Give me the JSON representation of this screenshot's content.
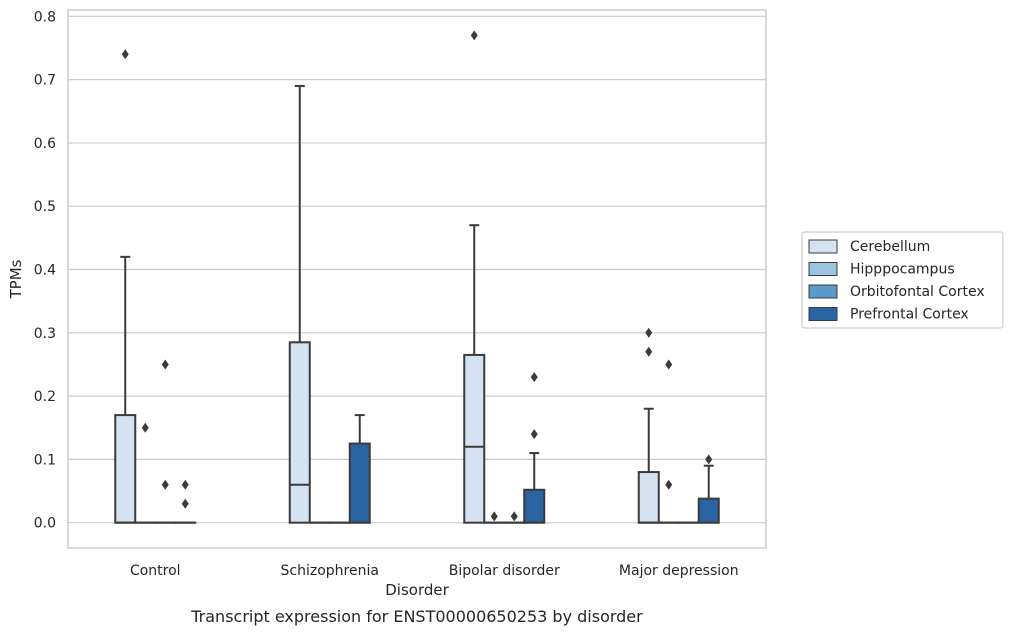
{
  "caption": "Transcript expression for ENST00000650253 by disorder",
  "chart_data": {
    "type": "box",
    "title": "",
    "xlabel": "Disorder",
    "ylabel": "TPMs",
    "ylim": [
      -0.04,
      0.81
    ],
    "yticks": [
      0.0,
      0.1,
      0.2,
      0.3,
      0.4,
      0.5,
      0.6,
      0.7,
      0.8
    ],
    "ytick_labels": [
      "0.0",
      "0.1",
      "0.2",
      "0.3",
      "0.4",
      "0.5",
      "0.6",
      "0.7",
      "0.8"
    ],
    "grid": true,
    "legend_position": "right",
    "categories": [
      "Control",
      "Schizophrenia",
      "Bipolar disorder",
      "Major depression"
    ],
    "series": [
      {
        "name": "Cerebellum",
        "color": "#d4e2f1",
        "boxes": [
          {
            "q1": 0.0,
            "median": 0.0,
            "q3": 0.17,
            "whislo": 0.0,
            "whishi": 0.42,
            "fliers": [
              0.74
            ]
          },
          {
            "q1": 0.0,
            "median": 0.06,
            "q3": 0.285,
            "whislo": 0.0,
            "whishi": 0.69,
            "fliers": []
          },
          {
            "q1": 0.0,
            "median": 0.12,
            "q3": 0.265,
            "whislo": 0.0,
            "whishi": 0.47,
            "fliers": [
              0.77
            ]
          },
          {
            "q1": 0.0,
            "median": 0.0,
            "q3": 0.08,
            "whislo": 0.0,
            "whishi": 0.18,
            "fliers": [
              0.3,
              0.27
            ]
          }
        ]
      },
      {
        "name": "Hipppocampus",
        "color": "#9ac4df",
        "boxes": [
          {
            "q1": 0.0,
            "median": 0.0,
            "q3": 0.0,
            "whislo": 0.0,
            "whishi": 0.0,
            "fliers": [
              0.15
            ]
          },
          {
            "q1": 0.0,
            "median": 0.0,
            "q3": 0.0,
            "whislo": 0.0,
            "whishi": 0.0,
            "fliers": []
          },
          {
            "q1": 0.0,
            "median": 0.0,
            "q3": 0.0,
            "whislo": 0.0,
            "whishi": 0.0,
            "fliers": [
              0.01
            ]
          },
          {
            "q1": 0.0,
            "median": 0.0,
            "q3": 0.0,
            "whislo": 0.0,
            "whishi": 0.0,
            "fliers": [
              0.25,
              0.06
            ]
          }
        ]
      },
      {
        "name": "Orbitofontal Cortex",
        "color": "#5b9ac9",
        "boxes": [
          {
            "q1": 0.0,
            "median": 0.0,
            "q3": 0.0,
            "whislo": 0.0,
            "whishi": 0.0,
            "fliers": [
              0.25,
              0.06
            ]
          },
          {
            "q1": 0.0,
            "median": 0.0,
            "q3": 0.0,
            "whislo": 0.0,
            "whishi": 0.0,
            "fliers": []
          },
          {
            "q1": 0.0,
            "median": 0.0,
            "q3": 0.0,
            "whislo": 0.0,
            "whishi": 0.0,
            "fliers": [
              0.01
            ]
          },
          {
            "q1": 0.0,
            "median": 0.0,
            "q3": 0.0,
            "whislo": 0.0,
            "whishi": 0.0,
            "fliers": []
          }
        ]
      },
      {
        "name": "Prefrontal Cortex",
        "color": "#2a64a3",
        "boxes": [
          {
            "q1": 0.0,
            "median": 0.0,
            "q3": 0.0,
            "whislo": 0.0,
            "whishi": 0.0,
            "fliers": [
              0.06,
              0.03
            ]
          },
          {
            "q1": 0.0,
            "median": 0.0,
            "q3": 0.125,
            "whislo": 0.0,
            "whishi": 0.17,
            "fliers": []
          },
          {
            "q1": 0.0,
            "median": 0.0,
            "q3": 0.052,
            "whislo": 0.0,
            "whishi": 0.11,
            "fliers": [
              0.23,
              0.14
            ]
          },
          {
            "q1": 0.0,
            "median": 0.0,
            "q3": 0.038,
            "whislo": 0.0,
            "whishi": 0.09,
            "fliers": [
              0.1
            ]
          }
        ]
      }
    ]
  }
}
